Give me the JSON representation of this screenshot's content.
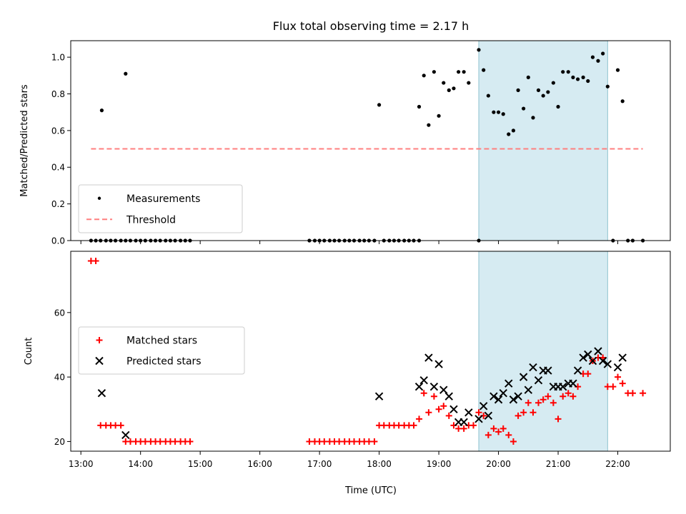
{
  "chart_data": [
    {
      "type": "scatter",
      "title": "Flux total observing time = 2.17 h",
      "ylabel": "Matched/Predicted stars",
      "xlabel": "",
      "x_unit": "hours UTC",
      "xlim": [
        12.83,
        22.88
      ],
      "ylim": [
        0,
        1.09
      ],
      "yticks": [
        0.0,
        0.2,
        0.4,
        0.6,
        0.8,
        1.0
      ],
      "yticklabels": [
        "0.0",
        "0.2",
        "0.4",
        "0.6",
        "0.8",
        "1.0"
      ],
      "legend_position": "lower-left",
      "grid": false,
      "highlight_span": [
        19.67,
        21.83
      ],
      "highlight_color": "#add8e6",
      "series": [
        {
          "name": "Measurements",
          "marker": "dot",
          "color": "#000000",
          "x": [
            13.17,
            13.25,
            13.33,
            13.42,
            13.5,
            13.58,
            13.67,
            13.75,
            13.83,
            13.92,
            14.0,
            14.08,
            14.17,
            14.25,
            14.33,
            14.42,
            14.5,
            14.58,
            14.67,
            14.75,
            14.83,
            16.83,
            16.92,
            17.0,
            17.08,
            17.17,
            17.25,
            17.33,
            17.42,
            17.5,
            17.58,
            17.67,
            17.75,
            17.83,
            17.92,
            18.08,
            18.17,
            18.25,
            18.33,
            18.42,
            18.5,
            18.58,
            18.67,
            19.67,
            21.92,
            22.17,
            22.25,
            22.42,
            13.35,
            13.75,
            18.0,
            18.67,
            18.75,
            18.83,
            18.92,
            19.0,
            19.08,
            19.17,
            19.25,
            19.33,
            19.42,
            19.5,
            19.67,
            19.75,
            19.83,
            19.92,
            20.0,
            20.08,
            20.17,
            20.25,
            20.33,
            20.42,
            20.5,
            20.58,
            20.67,
            20.75,
            20.83,
            20.92,
            21.0,
            21.08,
            21.17,
            21.25,
            21.33,
            21.42,
            21.5,
            21.58,
            21.67,
            21.75,
            21.83,
            22.0,
            22.08
          ],
          "y": [
            0,
            0,
            0,
            0,
            0,
            0,
            0,
            0,
            0,
            0,
            0,
            0,
            0,
            0,
            0,
            0,
            0,
            0,
            0,
            0,
            0,
            0,
            0,
            0,
            0,
            0,
            0,
            0,
            0,
            0,
            0,
            0,
            0,
            0,
            0,
            0,
            0,
            0,
            0,
            0,
            0,
            0,
            0,
            0,
            0,
            0,
            0,
            0,
            0.71,
            0.91,
            0.74,
            0.73,
            0.9,
            0.63,
            0.92,
            0.68,
            0.86,
            0.82,
            0.83,
            0.92,
            0.92,
            0.86,
            1.04,
            0.93,
            0.79,
            0.7,
            0.7,
            0.69,
            0.58,
            0.6,
            0.82,
            0.72,
            0.89,
            0.67,
            0.82,
            0.79,
            0.81,
            0.86,
            0.73,
            0.92,
            0.92,
            0.89,
            0.88,
            0.89,
            0.87,
            1.0,
            0.98,
            1.02,
            0.84,
            0.93,
            0.76
          ]
        },
        {
          "name": "Threshold",
          "marker": "dashed-line",
          "color": "#ff7f7f",
          "x": [
            13.17,
            22.42
          ],
          "y": [
            0.5,
            0.5
          ]
        }
      ]
    },
    {
      "type": "scatter",
      "title": "",
      "ylabel": "Count",
      "xlabel": "Time (UTC)",
      "x_unit": "hours UTC",
      "xlim": [
        12.83,
        22.88
      ],
      "ylim": [
        17,
        79
      ],
      "yticks": [
        20,
        40,
        60
      ],
      "yticklabels": [
        "20",
        "40",
        "60"
      ],
      "xticks": [
        13,
        14,
        15,
        16,
        17,
        18,
        19,
        20,
        21,
        22
      ],
      "xticklabels": [
        "13:00",
        "14:00",
        "15:00",
        "16:00",
        "17:00",
        "18:00",
        "19:00",
        "20:00",
        "21:00",
        "22:00"
      ],
      "legend_position": "center-left",
      "grid": false,
      "highlight_span": [
        19.67,
        21.83
      ],
      "highlight_color": "#add8e6",
      "series": [
        {
          "name": "Matched stars",
          "marker": "plus",
          "color": "#ff0000",
          "x": [
            13.17,
            13.25,
            13.33,
            13.42,
            13.5,
            13.58,
            13.67,
            13.75,
            13.83,
            13.92,
            14.0,
            14.08,
            14.17,
            14.25,
            14.33,
            14.42,
            14.5,
            14.58,
            14.67,
            14.75,
            14.83,
            16.83,
            16.92,
            17.0,
            17.08,
            17.17,
            17.25,
            17.33,
            17.42,
            17.5,
            17.58,
            17.67,
            17.75,
            17.83,
            17.92,
            18.0,
            18.08,
            18.17,
            18.25,
            18.33,
            18.42,
            18.5,
            18.58,
            18.67,
            18.75,
            18.83,
            18.92,
            19.0,
            19.08,
            19.17,
            19.25,
            19.33,
            19.42,
            19.5,
            19.58,
            19.67,
            19.75,
            19.83,
            19.92,
            20.0,
            20.08,
            20.17,
            20.25,
            20.33,
            20.42,
            20.5,
            20.58,
            20.67,
            20.75,
            20.83,
            20.92,
            21.0,
            21.08,
            21.17,
            21.25,
            21.33,
            21.42,
            21.5,
            21.58,
            21.67,
            21.75,
            21.83,
            21.92,
            22.0,
            22.08,
            22.17,
            22.25,
            22.42
          ],
          "y": [
            76,
            76,
            25,
            25,
            25,
            25,
            25,
            20,
            20,
            20,
            20,
            20,
            20,
            20,
            20,
            20,
            20,
            20,
            20,
            20,
            20,
            20,
            20,
            20,
            20,
            20,
            20,
            20,
            20,
            20,
            20,
            20,
            20,
            20,
            20,
            25,
            25,
            25,
            25,
            25,
            25,
            25,
            25,
            27,
            35,
            29,
            34,
            30,
            31,
            28,
            25,
            24,
            24,
            25,
            25,
            29,
            28,
            22,
            24,
            23,
            24,
            22,
            20,
            28,
            29,
            32,
            29,
            32,
            33,
            34,
            32,
            27,
            34,
            35,
            34,
            37,
            41,
            41,
            45,
            46,
            46,
            37,
            37,
            40,
            38,
            35,
            35,
            35
          ]
        },
        {
          "name": "Predicted stars",
          "marker": "x",
          "color": "#000000",
          "x": [
            13.35,
            13.75,
            18.0,
            18.67,
            18.75,
            18.83,
            18.92,
            19.0,
            19.08,
            19.17,
            19.25,
            19.33,
            19.42,
            19.5,
            19.67,
            19.75,
            19.83,
            19.92,
            20.0,
            20.08,
            20.17,
            20.25,
            20.33,
            20.42,
            20.5,
            20.58,
            20.67,
            20.75,
            20.83,
            20.92,
            21.0,
            21.08,
            21.17,
            21.25,
            21.33,
            21.42,
            21.5,
            21.58,
            21.67,
            21.75,
            21.83,
            22.0,
            22.08
          ],
          "y": [
            35,
            22,
            34,
            37,
            39,
            46,
            37,
            44,
            36,
            34,
            30,
            26,
            26,
            29,
            27,
            31,
            28,
            34,
            33,
            35,
            38,
            33,
            34,
            40,
            36,
            43,
            39,
            42,
            42,
            37,
            37,
            37,
            38,
            38,
            42,
            46,
            47,
            45,
            48,
            45,
            44,
            43,
            46
          ]
        }
      ]
    }
  ]
}
